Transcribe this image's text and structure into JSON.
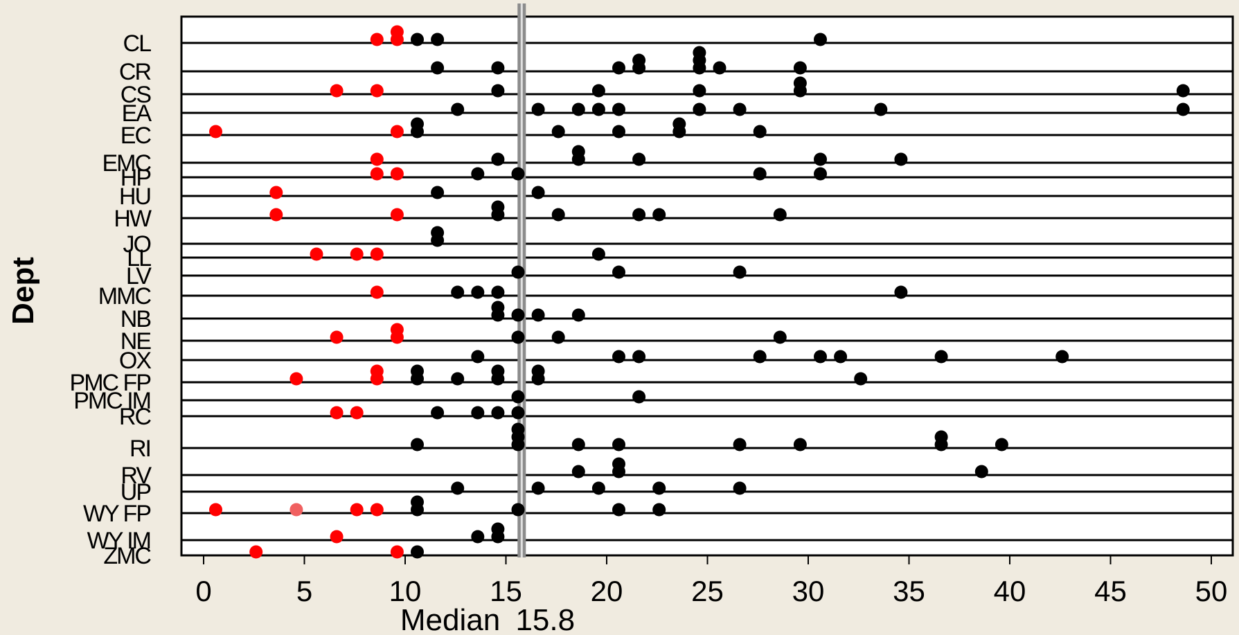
{
  "chart_data": {
    "type": "scatter",
    "title": "",
    "ylabel": "Dept",
    "xlabel_prefix": "Median",
    "median": 15.8,
    "xlim": [
      -1,
      51
    ],
    "xticks": [
      0,
      5,
      10,
      15,
      20,
      25,
      30,
      35,
      40,
      45,
      50
    ],
    "grid": "horizontal row lines",
    "colors": {
      "below_threshold": "#ff0000",
      "below_threshold_alt": "#f06060",
      "above_threshold": "#000000",
      "median_line": "#8c8c8c",
      "background": "#f0ebe0",
      "plot_background": "#ffffff"
    },
    "categories": [
      "CL",
      "CR",
      "CS",
      "EA",
      "EC",
      "EMC",
      "HP",
      "HU",
      "HW",
      "JO",
      "LL",
      "LV",
      "MMC",
      "NB",
      "NE",
      "OX",
      "PMC FP",
      "PMC IM",
      "RC",
      "RI",
      "RV",
      "UP",
      "WY FP",
      "WY IM",
      "ZMC"
    ],
    "rows": [
      {
        "dept": "CL",
        "points": [
          [
            9.6,
            1
          ],
          [
            8.6,
            0
          ],
          [
            9.6,
            0
          ],
          [
            10.6,
            0
          ],
          [
            11.6,
            0
          ],
          [
            30.6,
            0
          ]
        ]
      },
      {
        "dept": "CR",
        "points": [
          [
            21.6,
            1
          ],
          [
            24.6,
            2
          ],
          [
            24.6,
            1
          ],
          [
            11.6,
            0
          ],
          [
            14.6,
            0
          ],
          [
            20.6,
            0
          ],
          [
            21.6,
            0
          ],
          [
            24.6,
            0
          ],
          [
            25.6,
            0
          ],
          [
            29.6,
            0
          ]
        ]
      },
      {
        "dept": "CS",
        "points": [
          [
            29.6,
            1
          ],
          [
            6.6,
            0
          ],
          [
            8.6,
            0
          ],
          [
            14.6,
            0
          ],
          [
            19.6,
            0
          ],
          [
            24.6,
            0
          ],
          [
            29.6,
            0
          ],
          [
            48.6,
            0
          ]
        ]
      },
      {
        "dept": "EA",
        "points": [
          [
            12.6,
            0
          ],
          [
            16.6,
            0
          ],
          [
            18.6,
            0
          ],
          [
            19.6,
            0
          ],
          [
            20.6,
            0
          ],
          [
            24.6,
            0
          ],
          [
            26.6,
            0
          ],
          [
            33.6,
            0
          ],
          [
            48.6,
            0
          ]
        ]
      },
      {
        "dept": "EC",
        "points": [
          [
            10.6,
            1
          ],
          [
            23.6,
            1
          ],
          [
            0.6,
            0
          ],
          [
            9.6,
            0
          ],
          [
            10.6,
            0
          ],
          [
            17.6,
            0
          ],
          [
            20.6,
            0
          ],
          [
            23.6,
            0
          ],
          [
            27.6,
            0
          ]
        ]
      },
      {
        "dept": "EMC",
        "points": [
          [
            18.6,
            1
          ],
          [
            8.6,
            0
          ],
          [
            14.6,
            0
          ],
          [
            18.6,
            0
          ],
          [
            21.6,
            0
          ],
          [
            30.6,
            0
          ],
          [
            34.6,
            0
          ]
        ]
      },
      {
        "dept": "HP",
        "points": [
          [
            8.6,
            0
          ],
          [
            9.6,
            0
          ],
          [
            13.6,
            0
          ],
          [
            15.6,
            0
          ],
          [
            27.6,
            0
          ],
          [
            30.6,
            0
          ]
        ]
      },
      {
        "dept": "HU",
        "points": [
          [
            3.6,
            0
          ],
          [
            11.6,
            0
          ],
          [
            16.6,
            0
          ]
        ]
      },
      {
        "dept": "HW",
        "points": [
          [
            14.6,
            1
          ],
          [
            3.6,
            0
          ],
          [
            9.6,
            0
          ],
          [
            14.6,
            0
          ],
          [
            17.6,
            0
          ],
          [
            21.6,
            0
          ],
          [
            22.6,
            0
          ],
          [
            28.6,
            0
          ]
        ]
      },
      {
        "dept": "JO",
        "points": [
          [
            11.6,
            1
          ],
          [
            11.6,
            0
          ]
        ]
      },
      {
        "dept": "LL",
        "points": [
          [
            5.6,
            0
          ],
          [
            7.6,
            0
          ],
          [
            8.6,
            0
          ],
          [
            19.6,
            0
          ]
        ]
      },
      {
        "dept": "LV",
        "points": [
          [
            15.6,
            0
          ],
          [
            20.6,
            0
          ],
          [
            26.6,
            0
          ]
        ]
      },
      {
        "dept": "MMC",
        "points": [
          [
            8.6,
            0
          ],
          [
            12.6,
            0
          ],
          [
            13.6,
            0
          ],
          [
            14.6,
            0
          ],
          [
            34.6,
            0
          ]
        ]
      },
      {
        "dept": "NB",
        "points": [
          [
            14.6,
            1
          ],
          [
            14.6,
            0
          ],
          [
            15.6,
            0
          ],
          [
            16.6,
            0
          ],
          [
            18.6,
            0
          ]
        ]
      },
      {
        "dept": "NE",
        "points": [
          [
            9.6,
            1
          ],
          [
            6.6,
            0
          ],
          [
            9.6,
            0
          ],
          [
            15.6,
            0
          ],
          [
            17.6,
            0
          ],
          [
            28.6,
            0
          ]
        ]
      },
      {
        "dept": "OX",
        "points": [
          [
            13.6,
            0
          ],
          [
            20.6,
            0
          ],
          [
            21.6,
            0
          ],
          [
            27.6,
            0
          ],
          [
            30.6,
            0
          ],
          [
            31.6,
            0
          ],
          [
            36.6,
            0
          ],
          [
            42.6,
            0
          ]
        ]
      },
      {
        "dept": "PMC FP",
        "points": [
          [
            8.6,
            1
          ],
          [
            10.6,
            1
          ],
          [
            14.6,
            1
          ],
          [
            16.6,
            1
          ],
          [
            4.6,
            0
          ],
          [
            8.6,
            0
          ],
          [
            10.6,
            0
          ],
          [
            12.6,
            0
          ],
          [
            14.6,
            0
          ],
          [
            16.6,
            0
          ],
          [
            32.6,
            0
          ]
        ]
      },
      {
        "dept": "PMC IM",
        "points": [
          [
            15.6,
            0
          ],
          [
            21.6,
            0
          ]
        ]
      },
      {
        "dept": "RC",
        "points": [
          [
            6.6,
            0
          ],
          [
            7.6,
            0
          ],
          [
            11.6,
            0
          ],
          [
            13.6,
            0
          ],
          [
            14.6,
            0
          ],
          [
            15.6,
            0
          ]
        ]
      },
      {
        "dept": "RI",
        "points": [
          [
            15.6,
            2
          ],
          [
            15.6,
            1
          ],
          [
            36.6,
            1
          ],
          [
            10.6,
            0
          ],
          [
            15.6,
            0
          ],
          [
            18.6,
            0
          ],
          [
            20.6,
            0
          ],
          [
            26.6,
            0
          ],
          [
            29.6,
            0
          ],
          [
            36.6,
            0
          ],
          [
            39.6,
            0
          ]
        ]
      },
      {
        "dept": "RV",
        "points": [
          [
            20.6,
            1
          ],
          [
            18.6,
            0
          ],
          [
            20.6,
            0
          ],
          [
            38.6,
            0
          ]
        ]
      },
      {
        "dept": "UP",
        "points": [
          [
            12.6,
            0
          ],
          [
            16.6,
            0
          ],
          [
            19.6,
            0
          ],
          [
            22.6,
            0
          ],
          [
            26.6,
            0
          ]
        ]
      },
      {
        "dept": "WY FP",
        "points": [
          [
            10.6,
            1
          ],
          [
            0.6,
            0
          ],
          [
            4.6,
            0,
            "alt"
          ],
          [
            7.6,
            0
          ],
          [
            8.6,
            0
          ],
          [
            10.6,
            0
          ],
          [
            15.6,
            0
          ],
          [
            20.6,
            0
          ],
          [
            22.6,
            0
          ]
        ]
      },
      {
        "dept": "WY IM",
        "points": [
          [
            14.6,
            1
          ],
          [
            6.6,
            0
          ],
          [
            13.6,
            0
          ],
          [
            14.6,
            0
          ]
        ]
      },
      {
        "dept": "ZMC",
        "points": [
          [
            2.6,
            0
          ],
          [
            9.6,
            0
          ],
          [
            10.6,
            0
          ]
        ]
      }
    ]
  }
}
